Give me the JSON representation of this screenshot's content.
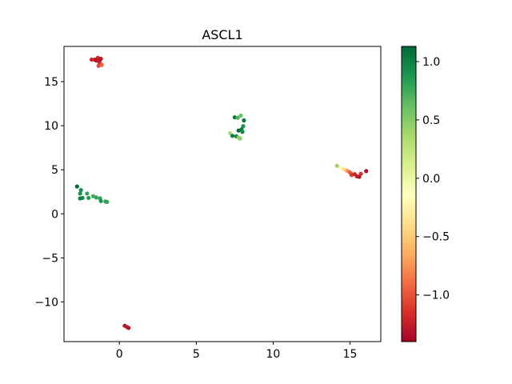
{
  "chart_data": {
    "type": "scatter",
    "title": "ASCL1",
    "xlabel": "",
    "ylabel": "",
    "xlim": [
      -3.6,
      17.0
    ],
    "ylim": [
      -14.5,
      19.0
    ],
    "x_ticks": [
      0,
      5,
      10,
      15
    ],
    "y_ticks": [
      -10,
      -5,
      0,
      5,
      10,
      15
    ],
    "x_tick_labels": [
      "0",
      "5",
      "10",
      "15"
    ],
    "y_tick_labels": [
      "−10",
      "−5",
      "0",
      "5",
      "10",
      "15"
    ],
    "grid": false,
    "colormap": "RdYlGn",
    "color_range": [
      -1.4,
      1.13
    ],
    "colorbar_ticks": [
      1.0,
      0.5,
      0.0,
      -0.5,
      -1.0
    ],
    "colorbar_tick_labels": [
      "1.0",
      "0.5",
      "0.0",
      "−0.5",
      "−1.0"
    ],
    "points": [
      {
        "x": -1.6,
        "y": 17.5,
        "v": -1.25
      },
      {
        "x": -1.4,
        "y": 17.7,
        "v": -1.2
      },
      {
        "x": -1.2,
        "y": 17.6,
        "v": -1.25
      },
      {
        "x": -1.5,
        "y": 17.4,
        "v": -1.3
      },
      {
        "x": -1.3,
        "y": 17.2,
        "v": -1.2
      },
      {
        "x": -1.35,
        "y": 16.8,
        "v": -1.05
      },
      {
        "x": -1.15,
        "y": 16.9,
        "v": -0.95
      },
      {
        "x": -1.25,
        "y": 17.5,
        "v": -1.3
      },
      {
        "x": -1.8,
        "y": 17.5,
        "v": -1.2
      },
      {
        "x": -2.75,
        "y": 3.1,
        "v": 1.1
      },
      {
        "x": -2.5,
        "y": 2.7,
        "v": 0.95
      },
      {
        "x": -2.55,
        "y": 2.3,
        "v": 0.9
      },
      {
        "x": -2.4,
        "y": 1.8,
        "v": 0.95
      },
      {
        "x": -2.55,
        "y": 1.75,
        "v": 1.0
      },
      {
        "x": -2.1,
        "y": 2.3,
        "v": 0.8
      },
      {
        "x": -2.0,
        "y": 1.8,
        "v": 0.85
      },
      {
        "x": -1.7,
        "y": 2.0,
        "v": 0.75
      },
      {
        "x": -1.5,
        "y": 1.85,
        "v": 0.8
      },
      {
        "x": -1.25,
        "y": 1.75,
        "v": 0.8
      },
      {
        "x": -1.2,
        "y": 1.45,
        "v": 0.9
      },
      {
        "x": -0.9,
        "y": 1.4,
        "v": 0.85
      },
      {
        "x": -0.8,
        "y": 1.35,
        "v": 0.8
      },
      {
        "x": 0.35,
        "y": -12.7,
        "v": -1.3
      },
      {
        "x": 0.5,
        "y": -12.85,
        "v": -1.25
      },
      {
        "x": 0.6,
        "y": -12.95,
        "v": -1.3
      },
      {
        "x": 7.5,
        "y": 10.95,
        "v": 1.05
      },
      {
        "x": 7.7,
        "y": 10.9,
        "v": 0.7
      },
      {
        "x": 7.9,
        "y": 11.15,
        "v": 0.6
      },
      {
        "x": 8.1,
        "y": 10.6,
        "v": 1.05
      },
      {
        "x": 8.05,
        "y": 9.95,
        "v": 0.9
      },
      {
        "x": 7.95,
        "y": 9.6,
        "v": 1.0
      },
      {
        "x": 7.75,
        "y": 9.45,
        "v": 1.1
      },
      {
        "x": 8.0,
        "y": 9.3,
        "v": 0.95
      },
      {
        "x": 7.2,
        "y": 9.15,
        "v": 0.35
      },
      {
        "x": 7.35,
        "y": 8.85,
        "v": 1.0
      },
      {
        "x": 7.6,
        "y": 8.8,
        "v": 0.95
      },
      {
        "x": 7.75,
        "y": 8.65,
        "v": 0.45
      },
      {
        "x": 7.85,
        "y": 8.55,
        "v": 0.5
      },
      {
        "x": 14.15,
        "y": 5.45,
        "v": 0.4
      },
      {
        "x": 14.4,
        "y": 5.2,
        "v": -0.2
      },
      {
        "x": 14.6,
        "y": 5.05,
        "v": -0.4
      },
      {
        "x": 14.8,
        "y": 4.9,
        "v": -0.7
      },
      {
        "x": 14.95,
        "y": 4.75,
        "v": -0.9
      },
      {
        "x": 15.05,
        "y": 4.6,
        "v": -1.0
      },
      {
        "x": 15.1,
        "y": 4.4,
        "v": -1.1
      },
      {
        "x": 15.3,
        "y": 4.5,
        "v": -1.2
      },
      {
        "x": 15.45,
        "y": 4.25,
        "v": -1.25
      },
      {
        "x": 15.6,
        "y": 4.2,
        "v": -1.3
      },
      {
        "x": 15.7,
        "y": 4.55,
        "v": -1.15
      },
      {
        "x": 16.05,
        "y": 4.85,
        "v": -1.35
      }
    ]
  }
}
